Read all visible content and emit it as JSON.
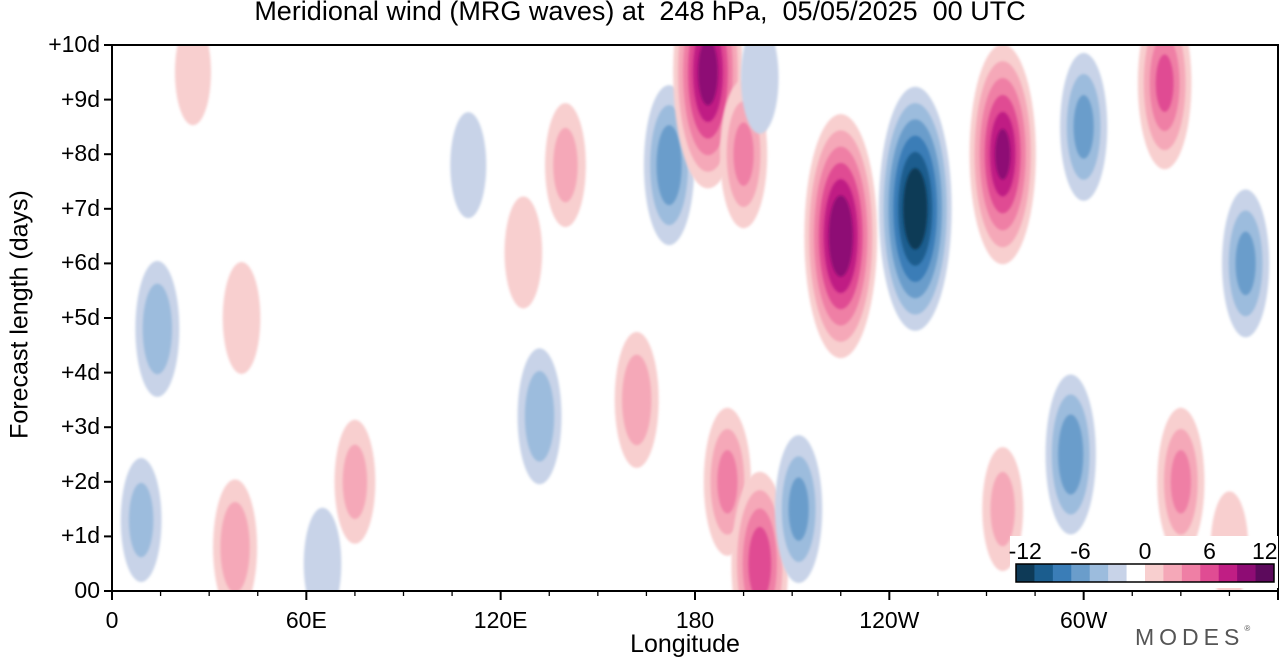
{
  "chart_data": {
    "type": "heatmap",
    "title": "Meridional wind (MRG waves) at  248 hPa,  05/05/2025  00 UTC",
    "xlabel": "Longitude",
    "ylabel": "Forecast length (days)",
    "x_ticks": [
      "0",
      "60E",
      "120E",
      "180",
      "120W",
      "60W"
    ],
    "x_tick_values": [
      0,
      60,
      120,
      180,
      240,
      300
    ],
    "xlim": [
      0,
      360
    ],
    "y_ticks": [
      "00",
      "+1d",
      "+2d",
      "+3d",
      "+4d",
      "+5d",
      "+6d",
      "+7d",
      "+8d",
      "+9d",
      "+10d"
    ],
    "y_tick_values": [
      0,
      1,
      2,
      3,
      4,
      5,
      6,
      7,
      8,
      9,
      10
    ],
    "ylim": [
      0,
      10
    ],
    "colorbar": {
      "tick_labels": [
        "-12",
        "-6",
        "0",
        "6",
        "12"
      ],
      "levels": [
        -14,
        -12,
        -10,
        -8,
        -6,
        -4,
        -2,
        2,
        4,
        6,
        8,
        10,
        12,
        14
      ],
      "colors": [
        "#0e3a57",
        "#1b5d8e",
        "#3a7db7",
        "#6a9dcb",
        "#9cbcdd",
        "#c8d3e8",
        "#ffffff",
        "#f8cfcf",
        "#f5a8b8",
        "#ef7fa5",
        "#e04c93",
        "#c01e84",
        "#8e0c74",
        "#5c0a5c"
      ],
      "placement": "bottom-right"
    },
    "features": [
      {
        "lon": 9,
        "day": 1.3,
        "value": -4
      },
      {
        "lon": 14,
        "day": 4.8,
        "value": -5
      },
      {
        "lon": 38,
        "day": 0.8,
        "value": 5
      },
      {
        "lon": 25,
        "day": 9.5,
        "value": 2.5
      },
      {
        "lon": 40,
        "day": 5,
        "value": 3
      },
      {
        "lon": 75,
        "day": 2,
        "value": 4
      },
      {
        "lon": 65,
        "day": 0.5,
        "value": -3
      },
      {
        "lon": 110,
        "day": 7.8,
        "value": -2.5
      },
      {
        "lon": 132,
        "day": 3.2,
        "value": -5
      },
      {
        "lon": 140,
        "day": 7.8,
        "value": 4
      },
      {
        "lon": 127,
        "day": 6.2,
        "value": 3
      },
      {
        "lon": 162,
        "day": 3.5,
        "value": 5
      },
      {
        "lon": 172,
        "day": 7.8,
        "value": -7
      },
      {
        "lon": 184,
        "day": 9.5,
        "value": 13
      },
      {
        "lon": 195,
        "day": 8,
        "value": 6
      },
      {
        "lon": 190,
        "day": 2,
        "value": 6
      },
      {
        "lon": 200,
        "day": 0.5,
        "value": 9
      },
      {
        "lon": 212,
        "day": 1.5,
        "value": -6
      },
      {
        "lon": 200,
        "day": 9.4,
        "value": -3
      },
      {
        "lon": 225,
        "day": 6.5,
        "value": 14
      },
      {
        "lon": 248,
        "day": 7,
        "value": -14
      },
      {
        "lon": 275,
        "day": 8,
        "value": 12
      },
      {
        "lon": 300,
        "day": 8.5,
        "value": -6
      },
      {
        "lon": 296,
        "day": 2.5,
        "value": -7
      },
      {
        "lon": 275,
        "day": 1.5,
        "value": 4
      },
      {
        "lon": 325,
        "day": 9.3,
        "value": 8
      },
      {
        "lon": 330,
        "day": 2,
        "value": 6
      },
      {
        "lon": 350,
        "day": 6,
        "value": -6
      },
      {
        "lon": 345,
        "day": 0.8,
        "value": 3
      }
    ]
  },
  "brand": "MODES"
}
